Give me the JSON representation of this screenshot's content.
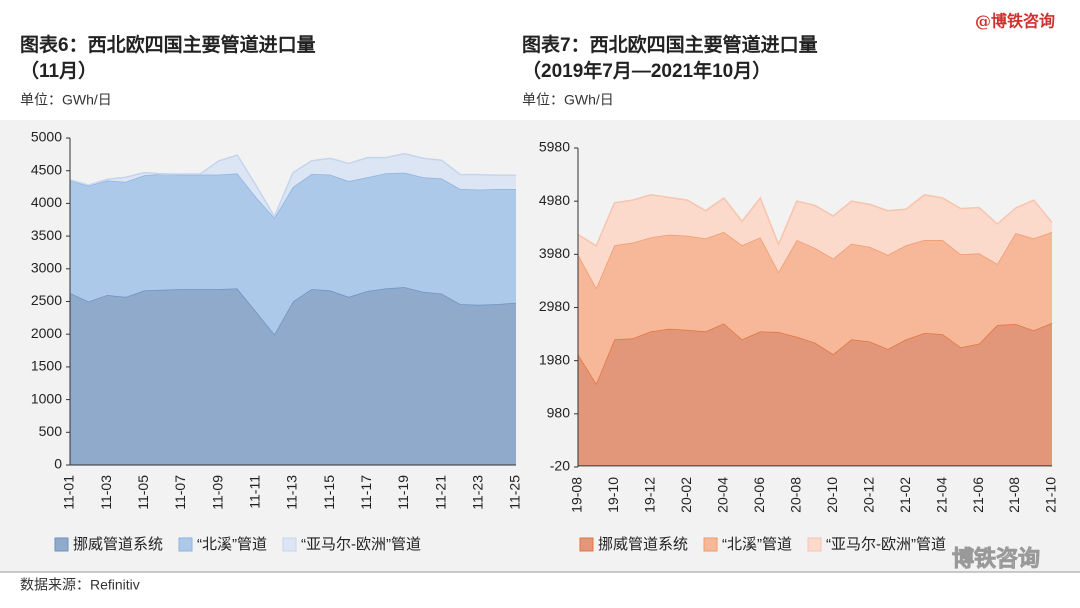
{
  "header": {
    "watermark": "@博铁咨询",
    "logo": "博铁咨询"
  },
  "source": "数据来源：Refinitiv",
  "chart_data": [
    {
      "type": "area",
      "stacked": true,
      "legend": "bottom",
      "title": "图表6：西北欧四国主要管道进口量",
      "subtitle": "（11月）",
      "unit": "单位：GWh/日",
      "categories": [
        "11-01",
        null,
        "11-03",
        null,
        "11-05",
        null,
        "11-07",
        null,
        "11-09",
        null,
        "11-11",
        null,
        "11-13",
        null,
        "11-15",
        null,
        "11-17",
        null,
        "11-19",
        null,
        "11-21",
        null,
        "11-23",
        null,
        "11-25"
      ],
      "series": [
        {
          "name": "挪威管道系统",
          "color": "#8faacb",
          "line": "#6f93c0",
          "values": [
            2630,
            2500,
            2600,
            2570,
            2670,
            2680,
            2690,
            2690,
            2690,
            2700,
            2350,
            2000,
            2500,
            2690,
            2670,
            2570,
            2660,
            2700,
            2720,
            2650,
            2620,
            2460,
            2450,
            2460,
            2480
          ]
        },
        {
          "name": "“北溪”管道",
          "color": "#adc9ea",
          "line": "#8fb3e0",
          "values": [
            1720,
            1770,
            1750,
            1760,
            1760,
            1770,
            1750,
            1750,
            1750,
            1760,
            1750,
            1780,
            1750,
            1760,
            1770,
            1770,
            1740,
            1760,
            1750,
            1750,
            1760,
            1760,
            1760,
            1760,
            1740
          ]
        },
        {
          "name": "“亚马尔-欧洲”管道",
          "color": "#dbe5f4",
          "line": "#c5d5ee",
          "values": [
            10,
            10,
            20,
            70,
            40,
            0,
            10,
            10,
            210,
            280,
            180,
            20,
            220,
            200,
            250,
            270,
            300,
            240,
            290,
            290,
            280,
            220,
            230,
            210,
            210
          ]
        }
      ],
      "ylim": [
        0,
        5000
      ],
      "yticks": [
        0,
        500,
        1000,
        1500,
        2000,
        2500,
        3000,
        3500,
        4000,
        4500,
        5000
      ]
    },
    {
      "type": "area",
      "stacked": true,
      "legend": "bottom",
      "title": "图表7：西北欧四国主要管道进口量",
      "subtitle": "（2019年7月—2021年10月）",
      "unit": "单位：GWh/日",
      "categories": [
        "19-08",
        null,
        "19-10",
        null,
        "19-12",
        null,
        "20-02",
        null,
        "20-04",
        null,
        "20-06",
        null,
        "20-08",
        null,
        "20-10",
        null,
        "20-12",
        null,
        "21-02",
        null,
        "21-04",
        null,
        "21-06",
        null,
        "21-08",
        null,
        "21-10"
      ],
      "series": [
        {
          "name": "挪威管道系统",
          "color": "#e2977a",
          "line": "#e0753f",
          "values": [
            2100,
            1550,
            2380,
            2400,
            2530,
            2580,
            2560,
            2530,
            2680,
            2380,
            2530,
            2520,
            2430,
            2320,
            2100,
            2380,
            2340,
            2200,
            2380,
            2500,
            2480,
            2230,
            2300,
            2650,
            2670,
            2550,
            2690
          ]
        },
        {
          "name": "“北溪”管道",
          "color": "#f6b898",
          "line": "#f09a6c",
          "values": [
            1880,
            1800,
            1770,
            1800,
            1770,
            1770,
            1770,
            1750,
            1720,
            1770,
            1770,
            1130,
            1820,
            1780,
            1800,
            1800,
            1780,
            1770,
            1770,
            1750,
            1770,
            1750,
            1700,
            1150,
            1710,
            1730,
            1710
          ]
        },
        {
          "name": "“亚马尔-欧洲”管道",
          "color": "#fbdacb",
          "line": "#f7c4ae",
          "values": [
            370,
            790,
            800,
            800,
            800,
            700,
            670,
            520,
            640,
            450,
            740,
            520,
            730,
            800,
            800,
            800,
            800,
            830,
            680,
            850,
            790,
            860,
            860,
            750,
            470,
            720,
            180
          ]
        }
      ],
      "ylim": [
        -20,
        5980
      ],
      "yticks": [
        -20,
        980,
        1980,
        2980,
        3980,
        4980,
        5980
      ]
    }
  ]
}
